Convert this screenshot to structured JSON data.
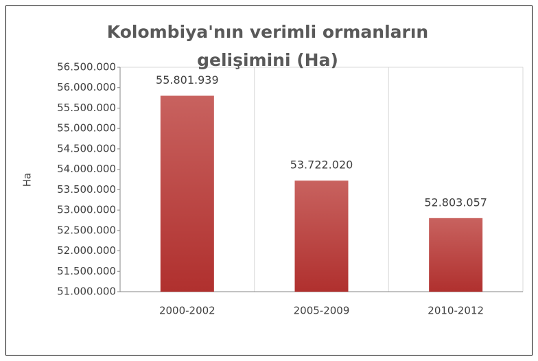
{
  "chart_data": {
    "type": "bar",
    "title": "Kolombiya'nın verimli ormanların gelişimini (Ha)",
    "y_label": "Ha",
    "categories": [
      "2000-2002",
      "2005-2009",
      "2010-2012"
    ],
    "values": [
      55801939,
      53722020,
      52803057
    ],
    "value_labels": [
      "55.801.939",
      "53.722.020",
      "52.803.057"
    ],
    "color": "#c0504d",
    "ylim": [
      51000000,
      56500000
    ],
    "yticks": [
      {
        "value": 51000000,
        "label": "51.000.000"
      },
      {
        "value": 51500000,
        "label": "51.500.000"
      },
      {
        "value": 52000000,
        "label": "52.000.000"
      },
      {
        "value": 52500000,
        "label": "52.500.000"
      },
      {
        "value": 53000000,
        "label": "53.000.000"
      },
      {
        "value": 53500000,
        "label": "53.500.000"
      },
      {
        "value": 54000000,
        "label": "54.000.000"
      },
      {
        "value": 54500000,
        "label": "54.500.000"
      },
      {
        "value": 55000000,
        "label": "55.000.000"
      },
      {
        "value": 55500000,
        "label": "55.500.000"
      },
      {
        "value": 56000000,
        "label": "56.000.000"
      },
      {
        "value": 56500000,
        "label": "56.500.000"
      }
    ],
    "grid": false
  }
}
